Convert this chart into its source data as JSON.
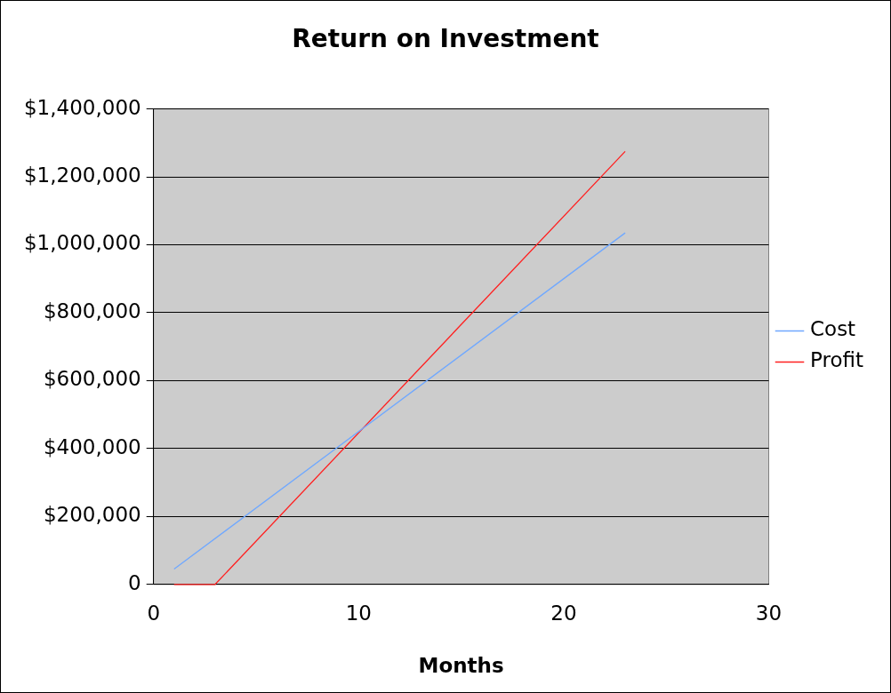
{
  "chart_data": {
    "type": "line",
    "title": "Return on Investment",
    "xlabel": "Months",
    "xlim": [
      0,
      30
    ],
    "xticks": [
      0,
      10,
      20,
      30
    ],
    "ylim": [
      0,
      1400000
    ],
    "yticks": [
      {
        "value": 0,
        "label": "0"
      },
      {
        "value": 200000,
        "label": "$200,000"
      },
      {
        "value": 400000,
        "label": "$400,000"
      },
      {
        "value": 600000,
        "label": "$600,000"
      },
      {
        "value": 800000,
        "label": "$800,000"
      },
      {
        "value": 1000000,
        "label": "$1,000,000"
      },
      {
        "value": 1200000,
        "label": "$1,200,000"
      },
      {
        "value": 1400000,
        "label": "$1,400,000"
      }
    ],
    "series": [
      {
        "name": "Cost",
        "color": "#6fa8ff",
        "x": [
          1,
          23
        ],
        "values": [
          45000,
          1035000
        ]
      },
      {
        "name": "Profit",
        "color": "#ff2020",
        "x": [
          1,
          3,
          23
        ],
        "values": [
          0,
          0,
          1275000
        ]
      }
    ],
    "grid": "y",
    "legend": "right",
    "marker": "none",
    "line_style": "solid"
  }
}
